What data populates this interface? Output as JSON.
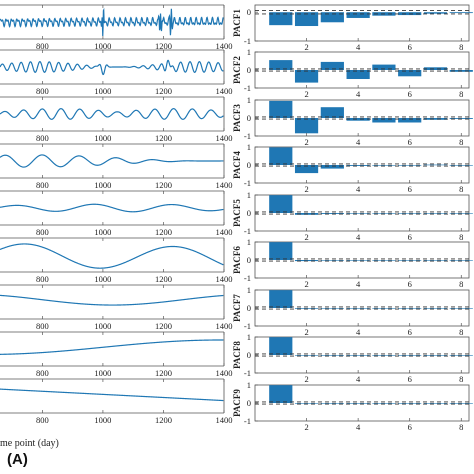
{
  "figure": {
    "panel_label": "(A)",
    "left_xlabel": "me point (day)"
  },
  "chart_data": [
    {
      "type": "line",
      "panel": "imf_time_series",
      "xlabel": "me point (day)",
      "xticks": [
        800,
        1000,
        1200,
        1400
      ],
      "xlim": [
        660,
        1400
      ],
      "rows": 9,
      "grid": false,
      "line_color": "#1f77b4"
    },
    {
      "type": "bar",
      "panel": "pacf",
      "xticks": [
        2,
        4,
        6,
        8
      ],
      "xlim": [
        0,
        8.3
      ],
      "grid": false,
      "bar_color": "#1f77b4",
      "confidence_bound": 0.06,
      "subplots": [
        {
          "ylabel": "PACF1",
          "yticks": [
            0,
            -1
          ],
          "ylim": [
            -1.0,
            0.25
          ],
          "lags": [
            1,
            2,
            3,
            4,
            5,
            6,
            7,
            8
          ],
          "values": [
            -0.45,
            -0.48,
            -0.35,
            -0.2,
            -0.12,
            -0.1,
            -0.05,
            -0.03
          ]
        },
        {
          "ylabel": "PACF2",
          "yticks": [
            1,
            0,
            -1
          ],
          "ylim": [
            -1,
            1
          ],
          "lags": [
            1,
            2,
            3,
            4,
            5,
            6,
            7,
            8
          ],
          "values": [
            0.55,
            -0.7,
            0.45,
            -0.5,
            0.3,
            -0.35,
            0.15,
            -0.1
          ]
        },
        {
          "ylabel": "PACF3",
          "yticks": [
            1,
            0,
            -1
          ],
          "ylim": [
            -1,
            1
          ],
          "lags": [
            1,
            2,
            3,
            4,
            5,
            6,
            7,
            8
          ],
          "values": [
            0.95,
            -0.85,
            0.6,
            -0.15,
            -0.25,
            -0.25,
            -0.1,
            -0.05
          ]
        },
        {
          "ylabel": "PACF4",
          "yticks": [
            1,
            0,
            -1
          ],
          "ylim": [
            -1,
            1
          ],
          "lags": [
            1,
            2,
            3,
            4,
            5,
            6,
            7,
            8
          ],
          "values": [
            0.98,
            -0.45,
            -0.2,
            -0.05,
            -0.02,
            -0.02,
            0.02,
            -0.02
          ]
        },
        {
          "ylabel": "PACF5",
          "yticks": [
            1,
            0,
            -1
          ],
          "ylim": [
            -1,
            1
          ],
          "lags": [
            1,
            2,
            3,
            4,
            5,
            6,
            7,
            8
          ],
          "values": [
            0.99,
            -0.1,
            -0.05,
            -0.03,
            -0.02,
            -0.01,
            -0.01,
            -0.01
          ]
        },
        {
          "ylabel": "PACF6",
          "yticks": [
            1,
            0,
            -1
          ],
          "ylim": [
            -1,
            1
          ],
          "lags": [
            1,
            2,
            3,
            4,
            5,
            6,
            7,
            8
          ],
          "values": [
            0.99,
            -0.06,
            -0.03,
            -0.02,
            -0.01,
            -0.01,
            -0.01,
            -0.01
          ]
        },
        {
          "ylabel": "PACF7",
          "yticks": [
            1,
            0,
            -1
          ],
          "ylim": [
            -1,
            1
          ],
          "lags": [
            1,
            2,
            3,
            4,
            5,
            6,
            7,
            8
          ],
          "values": [
            0.99,
            -0.04,
            -0.02,
            -0.01,
            -0.01,
            -0.01,
            -0.01,
            -0.01
          ]
        },
        {
          "ylabel": "PACF8",
          "yticks": [
            1,
            0,
            -1
          ],
          "ylim": [
            -1,
            1
          ],
          "lags": [
            1,
            2,
            3,
            4,
            5,
            6,
            7,
            8
          ],
          "values": [
            0.99,
            -0.03,
            -0.02,
            -0.01,
            -0.01,
            -0.01,
            -0.01,
            -0.01
          ]
        },
        {
          "ylabel": "PACF9",
          "yticks": [
            1,
            0,
            -1
          ],
          "ylim": [
            -1,
            1
          ],
          "lags": [
            1,
            2,
            3,
            4,
            5,
            6,
            7,
            8
          ],
          "values": [
            0.99,
            -0.03,
            -0.02,
            -0.01,
            -0.01,
            -0.01,
            -0.01,
            -0.01
          ]
        }
      ]
    }
  ]
}
